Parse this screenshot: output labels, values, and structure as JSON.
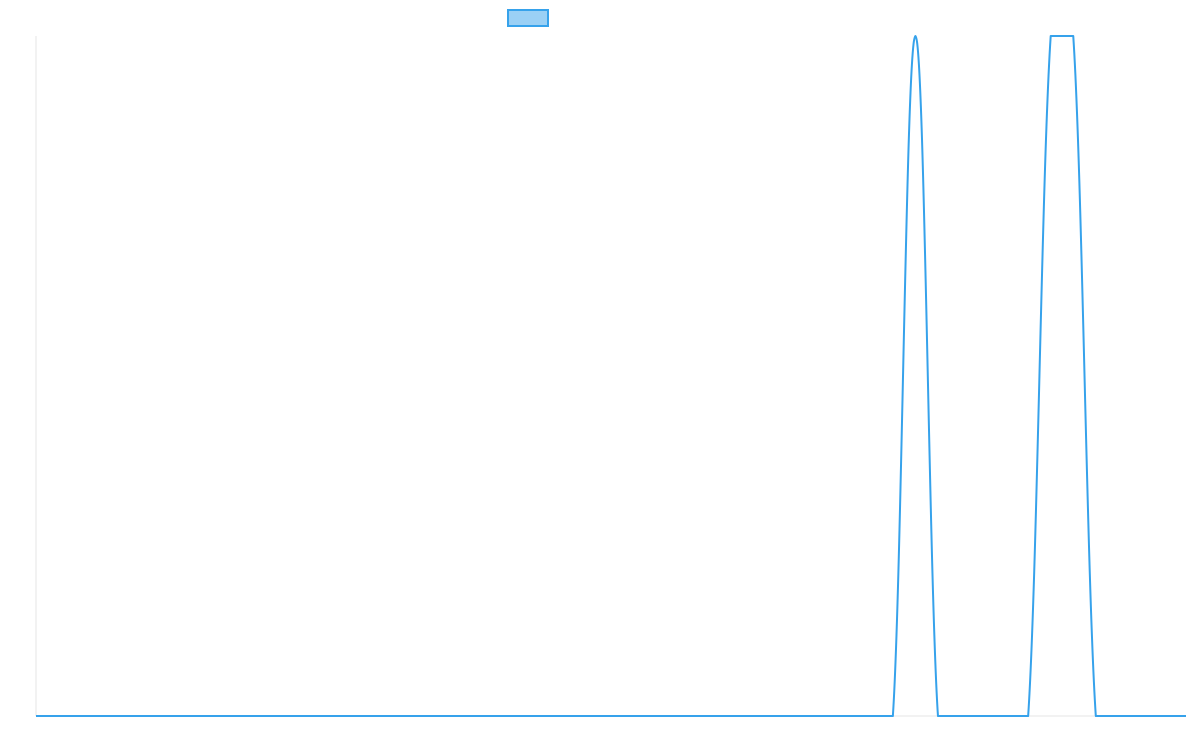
{
  "chart_data": {
    "type": "line",
    "title": "",
    "xlabel": "",
    "ylabel": "",
    "legend": {
      "placement": "top-center",
      "swatch_fill": "#9ad0f5",
      "swatch_border": "#36a2eb"
    },
    "grid": false,
    "x": [
      0,
      1,
      2,
      3,
      4,
      5,
      6,
      7,
      8,
      9,
      10,
      11,
      12,
      13,
      14,
      15,
      16,
      17,
      18,
      19,
      20,
      21,
      22,
      23,
      24,
      25,
      26,
      27,
      28,
      29,
      30,
      31,
      32,
      33,
      34,
      35,
      36,
      37,
      38,
      39,
      40,
      41,
      42,
      43,
      44,
      45,
      46,
      47,
      48,
      49,
      50,
      51
    ],
    "xlim": [
      0,
      51
    ],
    "ylim": [
      0,
      1
    ],
    "series": [
      {
        "color": "#36a2eb",
        "values": [
          0,
          0,
          0,
          0,
          0,
          0,
          0,
          0,
          0,
          0,
          0,
          0,
          0,
          0,
          0,
          0,
          0,
          0,
          0,
          0,
          0,
          0,
          0,
          0,
          0,
          0,
          0,
          0,
          0,
          0,
          0,
          0,
          0,
          0,
          0,
          0,
          0,
          0,
          0,
          1,
          0,
          0,
          0,
          0,
          0,
          1,
          1,
          0,
          0,
          0,
          0,
          0
        ]
      }
    ]
  }
}
